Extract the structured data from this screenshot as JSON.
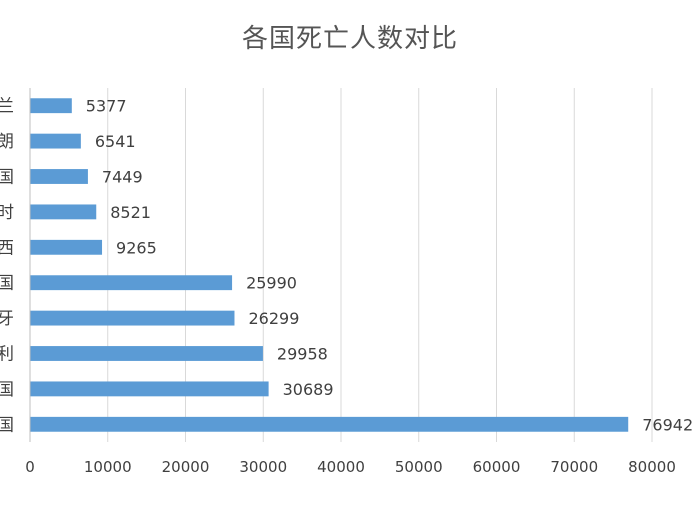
{
  "chart_data": {
    "type": "bar",
    "orientation": "horizontal",
    "title": "各国死亡人数对比",
    "xlabel": "",
    "ylabel": "",
    "categories": [
      "兰",
      "朗",
      "国",
      "时",
      "西",
      "国",
      "牙",
      "利",
      "国",
      "国"
    ],
    "values": [
      5377,
      6541,
      7449,
      8521,
      9265,
      25990,
      26299,
      29958,
      30689,
      76942
    ],
    "xlim": [
      0,
      80000
    ],
    "x_ticks": [
      "0",
      "10000",
      "20000",
      "30000",
      "40000",
      "50000",
      "60000",
      "70000",
      "80000"
    ],
    "grid": true,
    "legend": "none",
    "bar_color": "#5b9bd5",
    "grid_color": "#d9d9d9",
    "text_color": "#404040"
  }
}
